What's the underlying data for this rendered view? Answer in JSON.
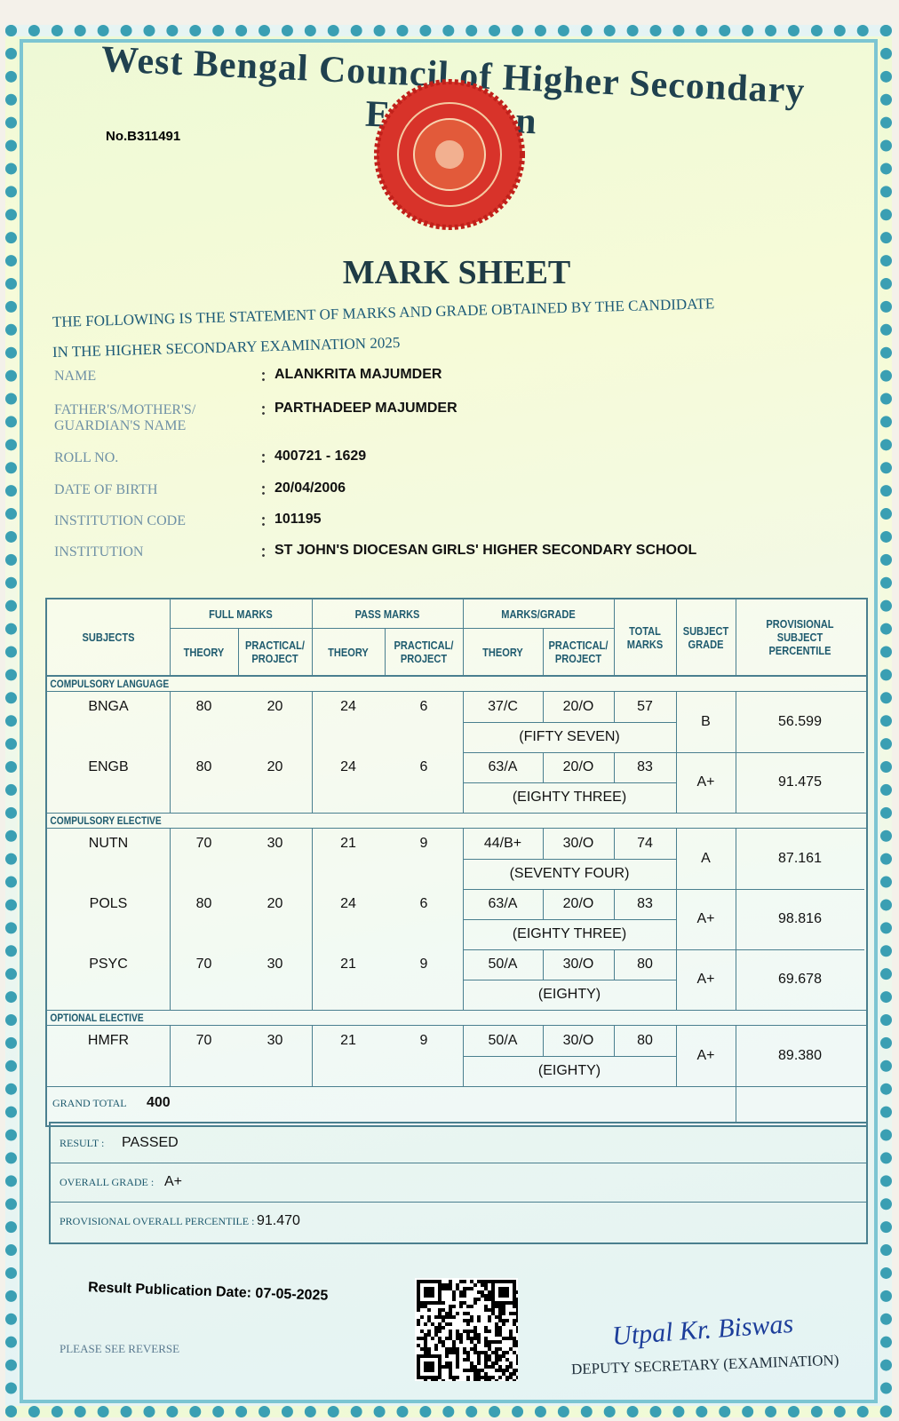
{
  "header": {
    "board": "West Bengal Council of Higher Secondary Education",
    "serial": "No.B311491",
    "title": "MARK SHEET",
    "statement": [
      "THE FOLLOWING IS THE STATEMENT OF MARKS AND GRADE OBTAINED BY THE CANDIDATE",
      "IN THE HIGHER SECONDARY EXAMINATION 2025"
    ]
  },
  "candidate": [
    {
      "label": "NAME",
      "value": "ALANKRITA MAJUMDER"
    },
    {
      "label": "FATHER'S/MOTHER'S/ GUARDIAN'S NAME",
      "value": "PARTHADEEP MAJUMDER"
    },
    {
      "label": "ROLL NO.",
      "value": "400721 - 1629"
    },
    {
      "label": "DATE OF BIRTH",
      "value": "20/04/2006"
    },
    {
      "label": "INSTITUTION CODE",
      "value": "101195"
    },
    {
      "label": "INSTITUTION",
      "value": "ST JOHN'S DIOCESAN GIRLS' HIGHER SECONDARY SCHOOL"
    }
  ],
  "table": {
    "subjects": "SUBJECTS",
    "groups": [
      {
        "title": "FULL MARKS",
        "columns": [
          "THEORY",
          "PRACTICAL/ PROJECT"
        ]
      },
      {
        "title": "PASS MARKS",
        "columns": [
          "THEORY",
          "PRACTICAL/ PROJECT"
        ]
      },
      {
        "title": "MARKS/GRADE",
        "columns": [
          "THEORY",
          "PRACTICAL/ PROJECT"
        ]
      }
    ],
    "total": "TOTAL MARKS",
    "grade": "SUBJECT GRADE",
    "percentile": "PROVISIONAL SUBJECT PERCENTILE",
    "sections": [
      {
        "name": "COMPULSORY LANGUAGE",
        "rows": [
          {
            "subject": "BNGA",
            "full_theory": 80,
            "full_practical": 20,
            "pass_theory": 24,
            "pass_practical": 6,
            "theory": "37/C",
            "practical": "20/O",
            "total": 57,
            "total_words": "(FIFTY SEVEN)",
            "grade": "B",
            "percentile": "56.599"
          },
          {
            "subject": "ENGB",
            "full_theory": 80,
            "full_practical": 20,
            "pass_theory": 24,
            "pass_practical": 6,
            "theory": "63/A",
            "practical": "20/O",
            "total": 83,
            "total_words": "(EIGHTY THREE)",
            "grade": "A+",
            "percentile": "91.475"
          }
        ]
      },
      {
        "name": "COMPULSORY ELECTIVE",
        "rows": [
          {
            "subject": "NUTN",
            "full_theory": 70,
            "full_practical": 30,
            "pass_theory": 21,
            "pass_practical": 9,
            "theory": "44/B+",
            "practical": "30/O",
            "total": 74,
            "total_words": "(SEVENTY FOUR)",
            "grade": "A",
            "percentile": "87.161"
          },
          {
            "subject": "POLS",
            "full_theory": 80,
            "full_practical": 20,
            "pass_theory": 24,
            "pass_practical": 6,
            "theory": "63/A",
            "practical": "20/O",
            "total": 83,
            "total_words": "(EIGHTY THREE)",
            "grade": "A+",
            "percentile": "98.816"
          },
          {
            "subject": "PSYC",
            "full_theory": 70,
            "full_practical": 30,
            "pass_theory": 21,
            "pass_practical": 9,
            "theory": "50/A",
            "practical": "30/O",
            "total": 80,
            "total_words": "(EIGHTY)",
            "grade": "A+",
            "percentile": "69.678"
          }
        ]
      },
      {
        "name": "OPTIONAL ELECTIVE",
        "rows": [
          {
            "subject": "HMFR",
            "full_theory": 70,
            "full_practical": 30,
            "pass_theory": 21,
            "pass_practical": 9,
            "theory": "50/A",
            "practical": "30/O",
            "total": 80,
            "total_words": "(EIGHTY)",
            "grade": "A+",
            "percentile": "89.380"
          }
        ]
      }
    ],
    "grand_total": {
      "label": "GRAND TOTAL",
      "value": 400
    }
  },
  "result": [
    {
      "label": "RESULT :",
      "value": "PASSED"
    },
    {
      "label": "OVERALL GRADE :",
      "value": "A+"
    },
    {
      "label": "PROVISIONAL OVERALL PERCENTILE :",
      "value": "91.470"
    }
  ],
  "footer": {
    "publication": "Result Publication Date: 07-05-2025",
    "note": "PLEASE SEE REVERSE",
    "signature": "Utpal Kr. Biswas",
    "designation": "DEPUTY SECRETARY (EXAMINATION)"
  }
}
